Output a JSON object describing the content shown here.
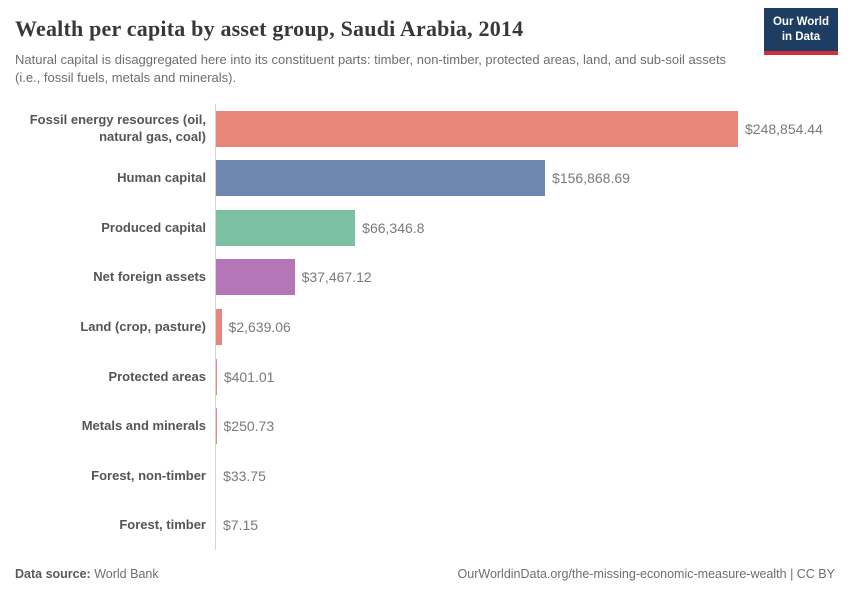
{
  "header": {
    "title": "Wealth per capita by asset group, Saudi Arabia, 2014",
    "subtitle": "Natural capital is disaggregated here into its constituent parts: timber, non-timber, protected areas, land, and sub-soil assets (i.e., fossil fuels, metals and minerals).",
    "logo": {
      "line1": "Our World",
      "line2": "in Data",
      "bg_color": "#1d3d63",
      "stripe_color": "#cf303e"
    }
  },
  "chart_data": {
    "type": "bar",
    "orientation": "horizontal",
    "title": "Wealth per capita by asset group, Saudi Arabia, 2014",
    "unit": "$",
    "grid": false,
    "legend": false,
    "categories": [
      "Fossil energy resources (oil, natural gas, coal)",
      "Human capital",
      "Produced capital",
      "Net foreign assets",
      "Land (crop, pasture)",
      "Protected areas",
      "Metals and minerals",
      "Forest, non-timber",
      "Forest, timber"
    ],
    "values": [
      248854.44,
      156868.69,
      66346.8,
      37467.12,
      2639.06,
      401.01,
      250.73,
      33.75,
      7.15
    ],
    "value_labels": [
      "$248,854.44",
      "$156,868.69",
      "$66,346.8",
      "$37,467.12",
      "$2,639.06",
      "$401.01",
      "$250.73",
      "$33.75",
      "$7.15"
    ],
    "colors": [
      "#e8867b",
      "#6d87b1",
      "#7cc0a2",
      "#b476b6",
      "#e8867b",
      "#e8867b",
      "#e8867b",
      "#e8867b",
      "#e8867b"
    ],
    "axis_line_color": "#d4d4d4"
  },
  "footer": {
    "datasource_label": "Data source:",
    "datasource_value": "World Bank",
    "link": "OurWorldinData.org/the-missing-economic-measure-wealth | CC BY"
  }
}
